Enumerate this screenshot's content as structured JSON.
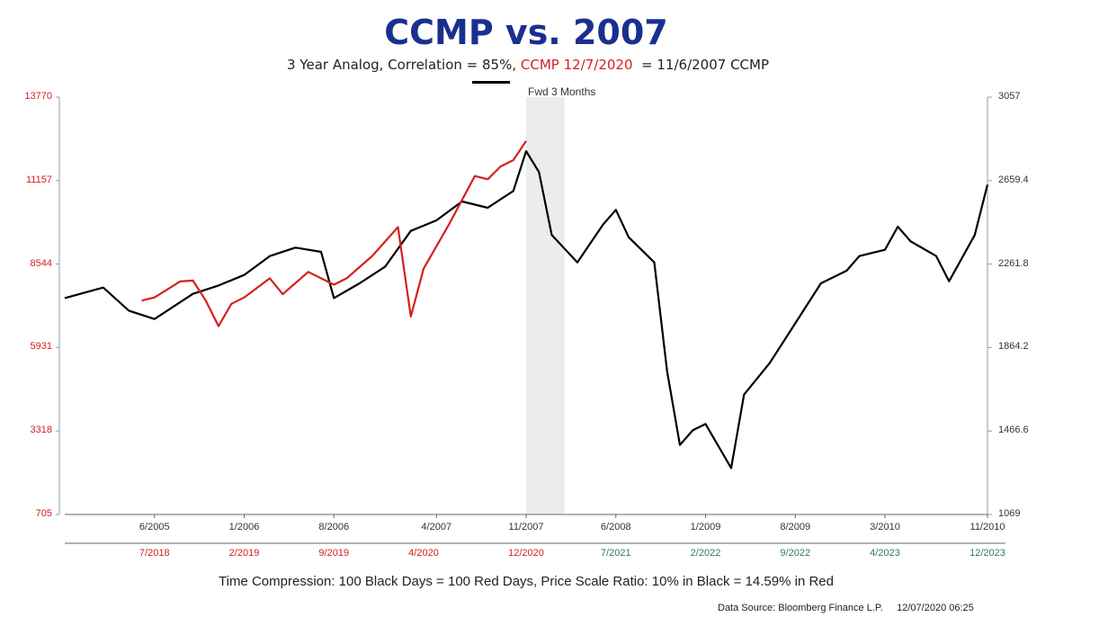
{
  "chart_data": {
    "type": "line",
    "title": "CCMP vs. 2007",
    "subtitle": {
      "part1": "3 Year Analog, Correlation = 85%, ",
      "part2_red": "CCMP 12/7/2020",
      "part3": "  = 11/6/2007 CCMP"
    },
    "shaded_region_label": "Fwd 3 Months",
    "shaded_region": [
      "11/2007",
      "2/2008"
    ],
    "left_axis": {
      "color": "#d42020",
      "ticks": [
        "13770",
        "11157",
        "8544",
        "5931",
        "3318",
        "705"
      ],
      "ylim": [
        705,
        13770
      ]
    },
    "right_axis": {
      "color": "#333333",
      "ticks": [
        "3057",
        "2659.4",
        "2261.8",
        "1864.2",
        "1466.6",
        "1069"
      ],
      "ylim": [
        1069,
        3057
      ]
    },
    "x_ticks_black": [
      "6/2005",
      "1/2006",
      "8/2006",
      "4/2007",
      "11/2007",
      "6/2008",
      "1/2009",
      "8/2009",
      "3/2010",
      "11/2010"
    ],
    "x_ticks_red": [
      "7/2018",
      "2/2019",
      "9/2019",
      "4/2020",
      "12/2020"
    ],
    "x_ticks_green": [
      "7/2021",
      "2/2022",
      "9/2022",
      "4/2023",
      "12/2023"
    ],
    "series": [
      {
        "name": "11/6/2007 CCMP",
        "color": "#000000",
        "axis": "right",
        "x": [
          "11/2004",
          "2/2005",
          "4/2005",
          "6/2005",
          "9/2005",
          "11/2005",
          "1/2006",
          "3/2006",
          "5/2006",
          "7/2006",
          "8/2006",
          "10/2006",
          "12/2006",
          "2/2007",
          "4/2007",
          "6/2007",
          "8/2007",
          "10/2007",
          "11/2007",
          "12/2007",
          "1/2008",
          "3/2008",
          "5/2008",
          "6/2008",
          "7/2008",
          "9/2008",
          "10/2008",
          "11/2008",
          "12/2008",
          "1/2009",
          "3/2009",
          "4/2009",
          "6/2009",
          "8/2009",
          "10/2009",
          "12/2009",
          "1/2010",
          "3/2010",
          "4/2010",
          "5/2010",
          "7/2010",
          "8/2010",
          "10/2010",
          "11/2010"
        ],
        "values": [
          2100,
          2150,
          2040,
          2000,
          2120,
          2160,
          2210,
          2300,
          2340,
          2320,
          2100,
          2170,
          2250,
          2420,
          2470,
          2560,
          2530,
          2610,
          2800,
          2700,
          2400,
          2270,
          2450,
          2520,
          2390,
          2270,
          1750,
          1400,
          1470,
          1500,
          1290,
          1640,
          1790,
          1980,
          2170,
          2230,
          2300,
          2330,
          2440,
          2370,
          2300,
          2180,
          2400,
          2640
        ]
      },
      {
        "name": "CCMP 12/7/2020",
        "color": "#d42020",
        "axis": "left",
        "x": [
          "6/2018",
          "7/2018",
          "9/2018",
          "10/2018",
          "11/2018",
          "12/2018",
          "1/2019",
          "2/2019",
          "4/2019",
          "5/2019",
          "7/2019",
          "9/2019",
          "10/2019",
          "12/2019",
          "2/2020",
          "3/2020",
          "4/2020",
          "6/2020",
          "8/2020",
          "9/2020",
          "10/2020",
          "11/2020",
          "12/2020"
        ],
        "values": [
          7400,
          7500,
          8000,
          8030,
          7400,
          6600,
          7300,
          7500,
          8100,
          7600,
          8300,
          7900,
          8100,
          8800,
          9700,
          6900,
          8400,
          9800,
          11300,
          11200,
          11600,
          11800,
          12400
        ]
      }
    ]
  },
  "footer": "Time Compression: 100 Black Days = 100 Red Days,  Price Scale Ratio: 10% in Black = 14.59% in Red",
  "source": "Data Source: Bloomberg Finance L.P.     12/07/2020 06:25",
  "colors": {
    "title": "#1a2f8f",
    "red": "#d42020",
    "black": "#000000",
    "green_ticks": "#2f7d5a",
    "shade": "#ececec"
  }
}
